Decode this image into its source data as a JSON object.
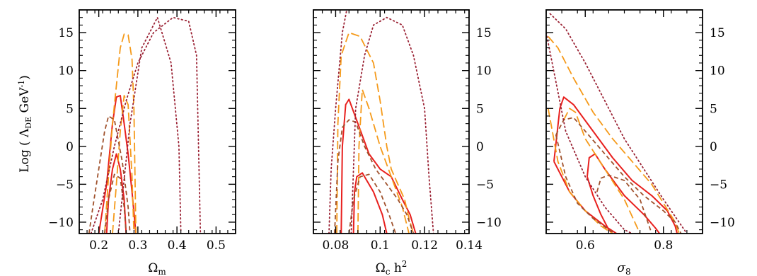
{
  "chart_data": [
    {
      "type": "line",
      "panel_id": "om",
      "xlabel": "Ω_m",
      "ylabel": "Log ( Λ_DE GeV⁻¹)",
      "xlim": [
        0.15,
        0.55
      ],
      "ylim": [
        -11.5,
        18
      ],
      "xticks": [
        0.2,
        0.3,
        0.4,
        0.5
      ],
      "xtick_labels": [
        "0.2",
        "0.3",
        "0.4",
        "0.5"
      ],
      "yticks": [
        -10,
        -5,
        0,
        5,
        10,
        15
      ],
      "ytick_labels": [
        "−10",
        "−5",
        "0",
        "5",
        "10",
        "15"
      ],
      "ytick_side": "left",
      "series": [
        {
          "style": "solid",
          "color": "#e8201e",
          "x": [
            0.2,
            0.22,
            0.235,
            0.245,
            0.255,
            0.265,
            0.275,
            0.285,
            0.295,
            0.29,
            0.27,
            0.25,
            0.225,
            0.21,
            0.2
          ],
          "y": [
            -11.5,
            -5,
            3,
            6.5,
            6.7,
            3,
            -1,
            -6,
            -11.5,
            -11.5,
            -11.5,
            -11.5,
            -11.5,
            -11.5,
            -11.5
          ]
        },
        {
          "style": "solid",
          "color": "#e8201e",
          "x": [
            0.22,
            0.225,
            0.235,
            0.245,
            0.255,
            0.265,
            0.27,
            0.268
          ],
          "y": [
            -11.5,
            -7,
            -3,
            -1,
            -3,
            -7,
            -11.5,
            -11.5
          ]
        },
        {
          "style": "long-dash",
          "color": "#f59a1a",
          "x": [
            0.215,
            0.225,
            0.235,
            0.245,
            0.255,
            0.265,
            0.275,
            0.285,
            0.29,
            0.295
          ],
          "y": [
            -11.5,
            -4,
            3,
            8,
            13,
            14.8,
            14.7,
            11.5,
            5,
            -11.5
          ]
        },
        {
          "style": "long-dash",
          "color": "#f59a1a",
          "x": [
            0.235,
            0.245,
            0.255,
            0.265,
            0.275,
            0.285,
            0.29
          ],
          "y": [
            -11.5,
            -5,
            2,
            6.7,
            5.5,
            -4,
            -11.5
          ]
        },
        {
          "style": "short-dash",
          "color": "#a0522d",
          "x": [
            0.175,
            0.185,
            0.2,
            0.215,
            0.225,
            0.24,
            0.26,
            0.275,
            0.28
          ],
          "y": [
            -11.5,
            -8,
            -3,
            2,
            4,
            3.5,
            -2,
            -8,
            -11.5
          ]
        },
        {
          "style": "short-dash",
          "color": "#a0522d",
          "x": [
            0.215,
            0.225,
            0.24,
            0.255,
            0.265,
            0.27
          ],
          "y": [
            -11.5,
            -7,
            -3.7,
            -4.2,
            -8,
            -11.5
          ]
        },
        {
          "style": "dotted",
          "color": "#9b2335",
          "x": [
            0.18,
            0.21,
            0.24,
            0.27,
            0.3,
            0.34,
            0.39,
            0.43,
            0.45,
            0.46
          ],
          "y": [
            -11.5,
            -7,
            0,
            6,
            11,
            15,
            17,
            16.5,
            12,
            -11.5
          ]
        },
        {
          "style": "dotted",
          "color": "#9b2335",
          "x": [
            0.25,
            0.28,
            0.31,
            0.35,
            0.385,
            0.405,
            0.41
          ],
          "y": [
            -11.5,
            3,
            13,
            17,
            11,
            0,
            -11.5
          ]
        }
      ]
    },
    {
      "type": "line",
      "panel_id": "och2",
      "xlabel": "Ω_c h²",
      "xlim": [
        0.07,
        0.14
      ],
      "ylim": [
        -11.5,
        18
      ],
      "xticks": [
        0.08,
        0.1,
        0.12,
        0.14
      ],
      "xtick_labels": [
        "0.08",
        "0.1",
        "0.12",
        "0.14"
      ],
      "yticks": [
        -10,
        -5,
        0,
        5,
        10,
        15
      ],
      "ytick_labels": [
        "−10",
        "−5",
        "0",
        "5",
        "10",
        "15"
      ],
      "ytick_side": "right",
      "series": [
        {
          "style": "solid",
          "color": "#e8201e",
          "x": [
            0.0825,
            0.083,
            0.0845,
            0.086,
            0.09,
            0.095,
            0.1,
            0.105,
            0.11,
            0.1135,
            0.116,
            0.115
          ],
          "y": [
            -11.5,
            0,
            5.5,
            6.2,
            3,
            -1,
            -3,
            -4,
            -7,
            -9,
            -11.5,
            -11.5
          ]
        },
        {
          "style": "solid",
          "color": "#e8201e",
          "x": [
            0.088,
            0.0885,
            0.0895,
            0.092,
            0.097,
            0.101,
            0.103,
            0.102
          ],
          "y": [
            -11.5,
            -6,
            -4,
            -3.5,
            -6,
            -9,
            -11.5,
            -11.5
          ]
        },
        {
          "style": "long-dash",
          "color": "#f59a1a",
          "x": [
            0.0805,
            0.081,
            0.0825,
            0.086,
            0.091,
            0.097,
            0.1,
            0.103,
            0.105,
            0.108,
            0.111,
            0.113,
            0.115
          ],
          "y": [
            -11.5,
            3,
            12,
            15,
            14.5,
            11,
            6,
            0,
            -3,
            -5,
            -7,
            -9.5,
            -11.5
          ]
        },
        {
          "style": "long-dash",
          "color": "#f59a1a",
          "x": [
            0.09,
            0.0905,
            0.092,
            0.095,
            0.1,
            0.105,
            0.11,
            0.113
          ],
          "y": [
            -11.5,
            0,
            7.5,
            5,
            0,
            -4,
            -8,
            -11.5
          ]
        },
        {
          "style": "short-dash",
          "color": "#a0522d",
          "x": [
            0.0795,
            0.081,
            0.083,
            0.086,
            0.089,
            0.093,
            0.098,
            0.103,
            0.108,
            0.112,
            0.115
          ],
          "y": [
            -11.5,
            -2,
            2.5,
            3.5,
            3.2,
            0,
            -3,
            -5,
            -7,
            -9,
            -11.5
          ]
        },
        {
          "style": "short-dash",
          "color": "#a0522d",
          "x": [
            0.086,
            0.088,
            0.091,
            0.095,
            0.1,
            0.104,
            0.107
          ],
          "y": [
            -11.5,
            -7,
            -4,
            -3.7,
            -6,
            -9,
            -11.5
          ]
        },
        {
          "style": "dotted",
          "color": "#9b2335",
          "x": [
            0.087,
            0.089,
            0.093,
            0.097,
            0.103,
            0.11,
            0.115,
            0.12,
            0.122,
            0.124
          ],
          "y": [
            -11.5,
            5,
            12,
            16,
            17,
            16,
            12,
            5,
            -4,
            -11.5
          ]
        },
        {
          "style": "dotted",
          "color": "#9b2335",
          "x": [
            0.077,
            0.078,
            0.08,
            0.083,
            0.085
          ],
          "y": [
            -11.5,
            -3,
            5,
            15,
            18
          ]
        }
      ]
    },
    {
      "type": "line",
      "panel_id": "s8",
      "xlabel": "σ_8",
      "xlim": [
        0.5,
        0.9
      ],
      "ylim": [
        -11.5,
        18
      ],
      "xticks": [
        0.6,
        0.8
      ],
      "xtick_labels": [
        "0.6",
        "0.8"
      ],
      "yticks": [
        -10,
        -5,
        0,
        5,
        10,
        15
      ],
      "ytick_labels": [
        "−10",
        "−5",
        "0",
        "5",
        "10",
        "15"
      ],
      "ytick_side": "right",
      "series": [
        {
          "style": "solid",
          "color": "#e8201e",
          "x": [
            0.52,
            0.535,
            0.545,
            0.57,
            0.62,
            0.67,
            0.72,
            0.77,
            0.81,
            0.83,
            0.835
          ],
          "y": [
            -2,
            5,
            6.5,
            5.5,
            2,
            -1.5,
            -4.5,
            -6.5,
            -8.5,
            -10.5,
            -11.5
          ]
        },
        {
          "style": "solid",
          "color": "#e8201e",
          "x": [
            0.52,
            0.56,
            0.6,
            0.65,
            0.68,
            0.69
          ],
          "y": [
            -2,
            -6,
            -8.5,
            -10.5,
            -11.5,
            -11.5
          ]
        },
        {
          "style": "solid",
          "color": "#e8201e",
          "x": [
            0.605,
            0.61,
            0.625,
            0.65,
            0.7,
            0.75,
            0.78,
            0.79
          ],
          "y": [
            -4,
            -1.5,
            -1,
            -3,
            -6.5,
            -9,
            -10.8,
            -11.5
          ]
        },
        {
          "style": "solid",
          "color": "#e8201e",
          "x": [
            0.605,
            0.62,
            0.64,
            0.66,
            0.67
          ],
          "y": [
            -4,
            -6.5,
            -9,
            -11,
            -11.5
          ]
        },
        {
          "style": "long-dash",
          "color": "#f59a1a",
          "x": [
            0.505,
            0.53,
            0.57,
            0.62,
            0.67,
            0.72,
            0.77,
            0.8,
            0.83,
            0.84
          ],
          "y": [
            14.5,
            13,
            9,
            4.5,
            1,
            -2,
            -5,
            -7.5,
            -10,
            -11.5
          ]
        },
        {
          "style": "long-dash",
          "color": "#f59a1a",
          "x": [
            0.505,
            0.53,
            0.56,
            0.6,
            0.64,
            0.67
          ],
          "y": [
            5,
            -2,
            -6,
            -8.5,
            -10.5,
            -11.5
          ]
        },
        {
          "style": "long-dash",
          "color": "#f59a1a",
          "x": [
            0.545,
            0.56,
            0.575,
            0.6,
            0.65,
            0.7,
            0.74
          ],
          "y": [
            3.5,
            5,
            4.5,
            1,
            -3,
            -7,
            -11.5
          ]
        },
        {
          "style": "short-dash",
          "color": "#a0522d",
          "x": [
            0.525,
            0.545,
            0.57,
            0.6,
            0.65,
            0.7,
            0.75,
            0.8,
            0.83,
            0.845
          ],
          "y": [
            1.5,
            3.5,
            3.8,
            2,
            -1,
            -4,
            -6.5,
            -8.5,
            -10,
            -11.5
          ]
        },
        {
          "style": "short-dash",
          "color": "#a0522d",
          "x": [
            0.525,
            0.55,
            0.58,
            0.62,
            0.66,
            0.68
          ],
          "y": [
            1.5,
            -4,
            -7.5,
            -9.5,
            -11,
            -11.5
          ]
        },
        {
          "style": "short-dash",
          "color": "#a0522d",
          "x": [
            0.63,
            0.64,
            0.66,
            0.7,
            0.74,
            0.77
          ],
          "y": [
            -6,
            -4.2,
            -3.8,
            -4.5,
            -7,
            -11.5
          ]
        },
        {
          "style": "dotted",
          "color": "#9b2335",
          "x": [
            0.51,
            0.55,
            0.6,
            0.65,
            0.7,
            0.75,
            0.8,
            0.84,
            0.86
          ],
          "y": [
            17.5,
            15.5,
            11,
            6,
            1,
            -3,
            -7,
            -10,
            -11.5
          ]
        },
        {
          "style": "dotted",
          "color": "#9b2335",
          "x": [
            0.5,
            0.55,
            0.6,
            0.65,
            0.7,
            0.72
          ],
          "y": [
            15,
            2,
            -4,
            -8,
            -11,
            -11.5
          ]
        }
      ]
    }
  ]
}
